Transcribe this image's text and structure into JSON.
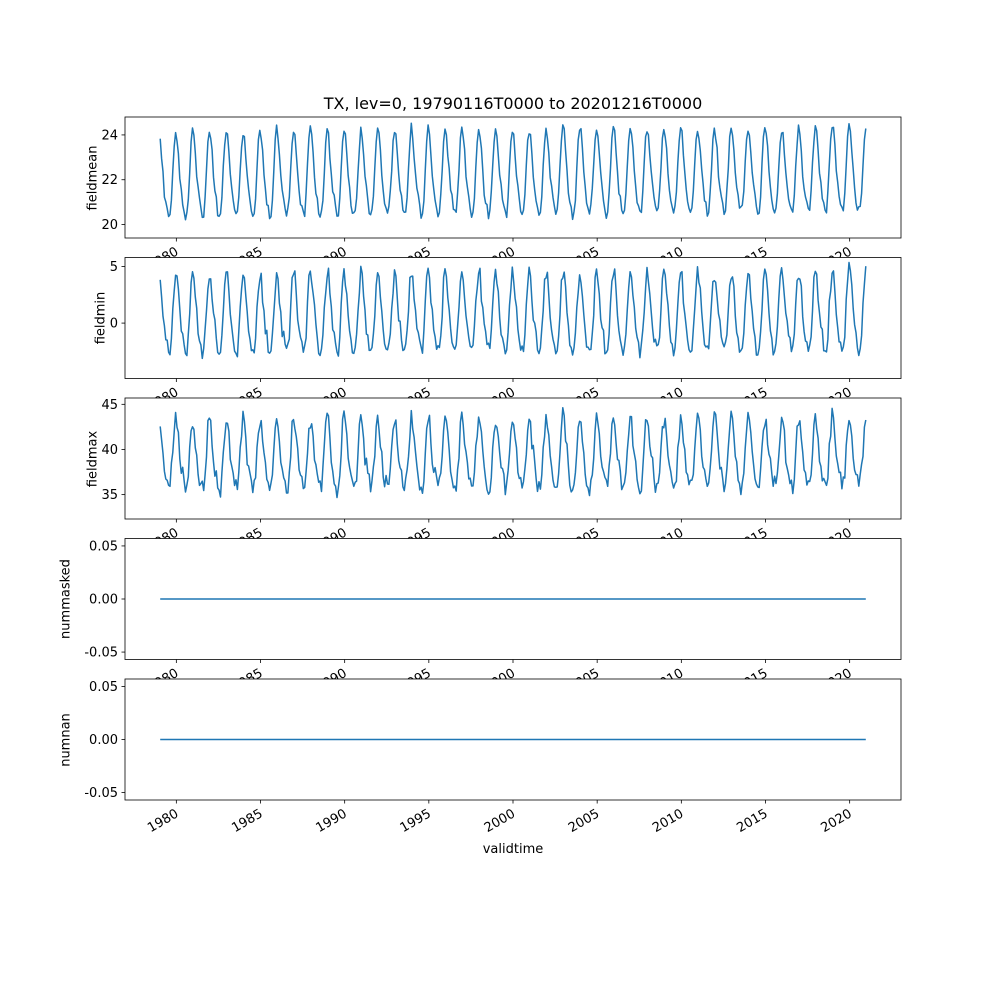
{
  "chart_data": {
    "type": "line",
    "title": "TX, lev=0, 19790116T0000 to 20201216T0000",
    "xlabel": "validtime",
    "line_color": "#1f77b4",
    "x_start": 1979.0417,
    "x_end": 2020.9583,
    "points_per_year": 12,
    "xlim": [
      1976.95,
      2023.05
    ],
    "xticks": [
      1980,
      1985,
      1990,
      1995,
      2000,
      2005,
      2010,
      2015,
      2020
    ],
    "subplots": [
      {
        "ylabel": "fieldmean",
        "ylim": [
          19.4,
          24.8
        ],
        "yticks": [
          20,
          22,
          24
        ],
        "ytick_labels": [
          "20",
          "22",
          "24"
        ],
        "model": {
          "base": 22.05,
          "amplitude": 2.0,
          "phase": 0.0,
          "noise": 0.3,
          "trend": 0.005,
          "seed": 11
        }
      },
      {
        "ylabel": "fieldmin",
        "ylim": [
          -4.9,
          5.8
        ],
        "yticks": [
          0,
          5
        ],
        "ytick_labels": [
          "0",
          "5"
        ],
        "model": {
          "base": 0.5,
          "amplitude": 3.7,
          "phase": 0.0,
          "noise": 0.9,
          "trend": 0.004,
          "seed": 23
        }
      },
      {
        "ylabel": "fieldmax",
        "ylim": [
          32.3,
          45.7
        ],
        "yticks": [
          35,
          40,
          45
        ],
        "ytick_labels": [
          "35",
          "40",
          "45"
        ],
        "model": {
          "base": 39.0,
          "amplitude": 4.0,
          "phase": 0.0,
          "noise": 1.3,
          "trend": 0.008,
          "seed": 37
        }
      },
      {
        "ylabel": "nummasked",
        "ylim": [
          -0.057,
          0.057
        ],
        "yticks": [
          -0.05,
          0,
          0.05
        ],
        "ytick_labels": [
          "-0.05",
          "0.00",
          "0.05"
        ],
        "model": {
          "base": 0,
          "amplitude": 0,
          "phase": 0.0,
          "noise": 0,
          "trend": 0,
          "seed": 41
        }
      },
      {
        "ylabel": "numnan",
        "ylim": [
          -0.057,
          0.057
        ],
        "yticks": [
          -0.05,
          0,
          0.05
        ],
        "ytick_labels": [
          "-0.05",
          "0.00",
          "0.05"
        ],
        "model": {
          "base": 0,
          "amplitude": 0,
          "phase": 0.0,
          "noise": 0,
          "trend": 0,
          "seed": 53
        }
      }
    ]
  }
}
